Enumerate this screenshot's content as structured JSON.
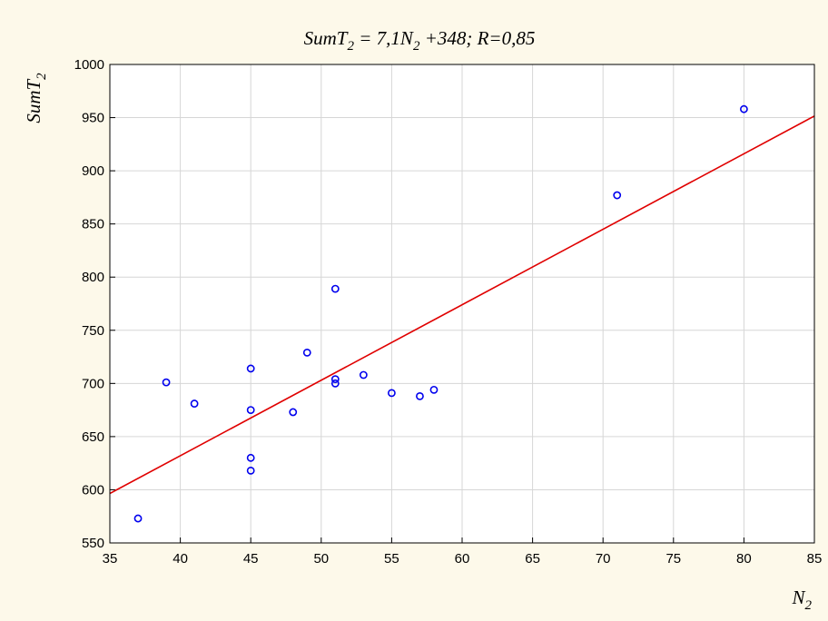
{
  "chart_data": {
    "type": "scatter",
    "title": {
      "p1": "SumT",
      "p1_sub": "2",
      "p2": " = 7,1N",
      "p2_sub": "2",
      "p3": " +348;  R=0,85"
    },
    "xlabel": {
      "main": "N",
      "sub": "2"
    },
    "ylabel": {
      "main": "SumT",
      "sub": "2"
    },
    "xlim": [
      35,
      85
    ],
    "ylim": [
      550,
      1000
    ],
    "x_ticks": [
      35,
      40,
      45,
      50,
      55,
      60,
      65,
      70,
      75,
      80,
      85
    ],
    "y_ticks": [
      550,
      600,
      650,
      700,
      750,
      800,
      850,
      900,
      950,
      1000
    ],
    "grid": true,
    "points": [
      {
        "x": 37,
        "y": 573
      },
      {
        "x": 39,
        "y": 701
      },
      {
        "x": 41,
        "y": 681
      },
      {
        "x": 45,
        "y": 714
      },
      {
        "x": 45,
        "y": 675
      },
      {
        "x": 45,
        "y": 630
      },
      {
        "x": 45,
        "y": 618
      },
      {
        "x": 48,
        "y": 673
      },
      {
        "x": 49,
        "y": 729
      },
      {
        "x": 51,
        "y": 789
      },
      {
        "x": 51,
        "y": 704
      },
      {
        "x": 51,
        "y": 700
      },
      {
        "x": 53,
        "y": 708
      },
      {
        "x": 55,
        "y": 691
      },
      {
        "x": 57,
        "y": 688
      },
      {
        "x": 58,
        "y": 694
      },
      {
        "x": 71,
        "y": 877
      },
      {
        "x": 80,
        "y": 958
      }
    ],
    "regression": {
      "slope": 7.1,
      "intercept": 348,
      "r": 0.85
    },
    "colors": {
      "points": "#0000ee",
      "line": "#e00000",
      "background": "#fdf9ea",
      "plot_area": "#ffffff"
    }
  }
}
